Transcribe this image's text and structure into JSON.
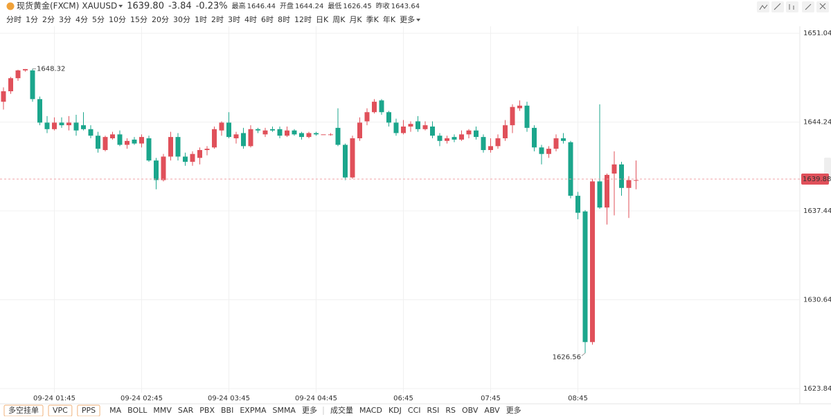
{
  "header": {
    "title": "现货黄金(FXCM)",
    "symbol": "XAUUSD",
    "price": "1639.80",
    "change": "-3.84",
    "change_pct": "-0.23%",
    "stats": [
      {
        "label": "最高",
        "value": "1646.44"
      },
      {
        "label": "开盘",
        "value": "1644.24"
      },
      {
        "label": "最低",
        "value": "1626.45"
      },
      {
        "label": "昨收",
        "value": "1643.64"
      }
    ]
  },
  "intervals": [
    "分时",
    "1分",
    "2分",
    "3分",
    "4分",
    "5分",
    "10分",
    "15分",
    "20分",
    "30分",
    "1时",
    "2时",
    "3时",
    "4时",
    "6时",
    "8时",
    "12时",
    "日K",
    "周K",
    "月K",
    "季K",
    "年K",
    "更多"
  ],
  "active_interval": 5,
  "order_buttons": [
    "多空挂单",
    "VPC",
    "PPS"
  ],
  "main_indicators": [
    "MA",
    "BOLL",
    "MMV",
    "SAR",
    "PBX",
    "BBI",
    "EXPMA",
    "SMMA",
    "更多"
  ],
  "sub_indicators": [
    "成交量",
    "MACD",
    "KDJ",
    "CCI",
    "RSI",
    "RS",
    "OBV",
    "ABV",
    "更多"
  ],
  "chart_data": {
    "type": "candlestick",
    "up_color": "#e0505a",
    "down_color": "#1ba68c",
    "categories": [
      null,
      null,
      null,
      null,
      null,
      null,
      null,
      "09-24 01:45",
      null,
      null,
      null,
      null,
      null,
      null,
      null,
      null,
      null,
      null,
      null,
      "09-24 02:45",
      null,
      null,
      null,
      null,
      null,
      null,
      null,
      null,
      null,
      null,
      null,
      "09-24 03:45",
      null,
      null,
      null,
      null,
      null,
      null,
      null,
      null,
      null,
      null,
      null,
      "09-24 04:45",
      null,
      null,
      null,
      null,
      null,
      null,
      null,
      null,
      null,
      null,
      null,
      "06:45",
      null,
      null,
      null,
      null,
      null,
      null,
      null,
      null,
      null,
      null,
      null,
      "07:45",
      null,
      null,
      null,
      null,
      null,
      null,
      null,
      null,
      null,
      null,
      null,
      "08:45",
      null,
      null,
      null,
      null,
      null,
      null,
      null,
      null
    ],
    "open": [
      1645.8,
      1646.6,
      1647.6,
      1648.2,
      1648.2,
      1646.0,
      1644.2,
      1643.7,
      1644.2,
      1644.0,
      1644.2,
      1644.0,
      1643.7,
      1643.2,
      1642.1,
      1643.0,
      1643.3,
      1642.5,
      1642.9,
      1642.6,
      1643.0,
      1641.3,
      1639.8,
      1641.6,
      1643.1,
      1641.6,
      1641.2,
      1641.5,
      1642.1,
      1642.3,
      1643.6,
      1644.2,
      1643.0,
      1643.4,
      1642.4,
      1643.7,
      1643.3,
      1643.7,
      1643.7,
      1643.2,
      1643.6,
      1643.4,
      1643.1,
      1643.4,
      1643.3,
      1643.3,
      1643.8,
      1642.5,
      1640.0,
      1643.0,
      1644.3,
      1645.0,
      1645.9,
      1645.0,
      1644.2,
      1643.4,
      1643.9,
      1644.3,
      1643.7,
      1643.9,
      1643.2,
      1642.8,
      1643.1,
      1642.9,
      1643.3,
      1643.6,
      1643.1,
      1642.1,
      1642.4,
      1643.0,
      1644.0,
      1645.3,
      1645.5,
      1643.8,
      1642.3,
      1641.8,
      1642.2,
      1643.0,
      1642.7,
      1638.6,
      1637.4,
      1627.4,
      1639.7,
      1637.7,
      1640.3,
      1641.0,
      1639.2,
      1639.8
    ],
    "high": [
      1646.9,
      1647.7,
      1648.25,
      1648.3,
      1648.32,
      1646.2,
      1644.7,
      1644.6,
      1644.6,
      1644.7,
      1644.8,
      1645.0,
      1644.0,
      1643.5,
      1643.2,
      1643.5,
      1643.6,
      1643.0,
      1643.1,
      1643.3,
      1643.2,
      1641.5,
      1641.8,
      1643.5,
      1643.4,
      1641.9,
      1642.0,
      1642.3,
      1642.4,
      1643.9,
      1644.3,
      1645.0,
      1643.5,
      1643.8,
      1644.0,
      1643.8,
      1643.8,
      1643.9,
      1643.9,
      1643.9,
      1643.7,
      1643.5,
      1643.5,
      1643.5,
      1643.3,
      1643.4,
      1645.3,
      1642.6,
      1643.2,
      1644.6,
      1645.3,
      1646.0,
      1646.0,
      1645.1,
      1644.5,
      1644.4,
      1644.3,
      1644.7,
      1644.3,
      1644.3,
      1643.4,
      1643.2,
      1643.3,
      1643.6,
      1643.7,
      1643.9,
      1643.3,
      1643.0,
      1643.3,
      1644.4,
      1645.6,
      1645.9,
      1645.8,
      1644.0,
      1642.5,
      1642.4,
      1643.3,
      1643.4,
      1642.8,
      1638.9,
      1637.5,
      1639.9,
      1645.6,
      1640.3,
      1642.0,
      1641.2,
      1640.1,
      1641.3
    ],
    "low": [
      1645.2,
      1646.4,
      1647.4,
      1648.1,
      1645.8,
      1644.0,
      1643.4,
      1643.6,
      1643.8,
      1643.6,
      1643.2,
      1643.6,
      1643.0,
      1641.9,
      1642.0,
      1642.9,
      1642.4,
      1642.2,
      1642.5,
      1642.3,
      1641.2,
      1639.1,
      1639.7,
      1641.3,
      1641.3,
      1640.9,
      1640.9,
      1641.0,
      1641.7,
      1642.2,
      1643.2,
      1643.0,
      1642.6,
      1642.2,
      1642.3,
      1643.4,
      1643.1,
      1643.5,
      1643.0,
      1643.1,
      1643.2,
      1642.9,
      1643.0,
      1643.2,
      1643.3,
      1643.2,
      1642.4,
      1639.8,
      1639.9,
      1642.8,
      1644.0,
      1644.9,
      1644.8,
      1643.9,
      1643.2,
      1643.3,
      1643.5,
      1643.5,
      1643.6,
      1643.0,
      1642.4,
      1642.6,
      1642.7,
      1642.8,
      1643.0,
      1642.9,
      1641.9,
      1641.9,
      1642.2,
      1642.8,
      1643.4,
      1645.1,
      1643.5,
      1642.0,
      1641.0,
      1641.5,
      1642.0,
      1642.6,
      1638.4,
      1636.8,
      1626.56,
      1627.2,
      1637.6,
      1636.4,
      1637.1,
      1638.6,
      1636.9,
      1639.1
    ],
    "close": [
      1646.6,
      1647.6,
      1648.2,
      1648.3,
      1646.0,
      1644.2,
      1643.7,
      1644.2,
      1644.0,
      1644.2,
      1643.6,
      1643.7,
      1643.2,
      1642.2,
      1643.1,
      1643.3,
      1642.5,
      1642.8,
      1642.6,
      1643.1,
      1641.3,
      1639.8,
      1641.6,
      1643.1,
      1641.6,
      1641.2,
      1641.8,
      1642.1,
      1642.2,
      1643.7,
      1644.2,
      1643.1,
      1643.3,
      1642.4,
      1643.7,
      1643.6,
      1643.6,
      1643.6,
      1643.2,
      1643.6,
      1643.3,
      1643.1,
      1643.4,
      1643.3,
      1643.3,
      1643.3,
      1642.5,
      1640.0,
      1643.0,
      1644.2,
      1645.0,
      1645.8,
      1645.0,
      1644.2,
      1643.4,
      1643.9,
      1644.1,
      1643.7,
      1644.0,
      1643.2,
      1642.8,
      1643.0,
      1642.9,
      1643.3,
      1643.6,
      1643.1,
      1642.1,
      1642.4,
      1643.0,
      1644.0,
      1645.4,
      1645.5,
      1643.8,
      1642.3,
      1641.8,
      1642.2,
      1643.0,
      1642.8,
      1638.6,
      1637.3,
      1627.4,
      1639.7,
      1637.7,
      1640.2,
      1641.0,
      1639.2,
      1639.8,
      1639.8
    ],
    "max_label_index": 4,
    "min_label_index": 80,
    "last_price": 1639.88,
    "ylim": [
      1623.15,
      1652.0
    ],
    "yticks": [
      1651.04,
      1644.24,
      1637.44,
      1630.64,
      1623.84
    ],
    "grid": true
  }
}
